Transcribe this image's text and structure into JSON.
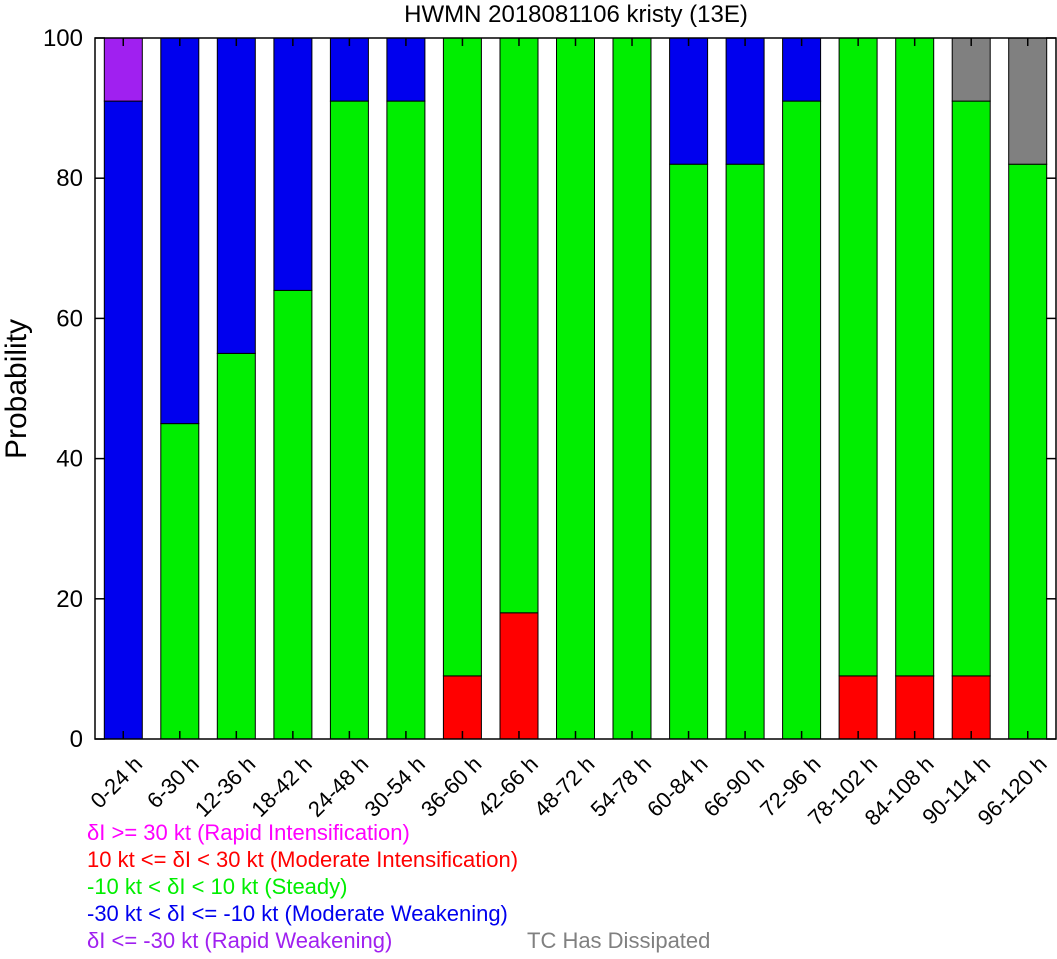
{
  "chart_data": {
    "type": "bar",
    "stacked": true,
    "title": "HWMN 2018081106 kristy (13E)",
    "ylabel": "Probability",
    "xlabel": "",
    "ylim": [
      0,
      100
    ],
    "yticks": [
      0,
      20,
      40,
      60,
      80,
      100
    ],
    "categories": [
      "0-24 h",
      "6-30 h",
      "12-36 h",
      "18-42 h",
      "24-48 h",
      "30-54 h",
      "36-60 h",
      "42-66 h",
      "48-72 h",
      "54-78 h",
      "60-84 h",
      "66-90 h",
      "72-96 h",
      "78-102 h",
      "84-108 h",
      "90-114 h",
      "96-120 h"
    ],
    "series": [
      {
        "name": "δI >= 30 kt (Rapid Intensification)",
        "color": "#ff00ff",
        "values": [
          0,
          0,
          0,
          0,
          0,
          0,
          0,
          0,
          0,
          0,
          0,
          0,
          0,
          0,
          0,
          0,
          0
        ]
      },
      {
        "name": "10 kt <= δI < 30 kt (Moderate Intensification)",
        "color": "#ff0000",
        "values": [
          0,
          0,
          0,
          0,
          0,
          0,
          9,
          18,
          0,
          0,
          0,
          0,
          0,
          9,
          9,
          9,
          0
        ]
      },
      {
        "name": "-10 kt < δI < 10 kt (Steady)",
        "color": "#00ee00",
        "values": [
          0,
          45,
          55,
          64,
          91,
          91,
          91,
          82,
          100,
          100,
          82,
          82,
          91,
          91,
          91,
          82,
          82
        ]
      },
      {
        "name": "-30 kt < δI <= -10 kt (Moderate Weakening)",
        "color": "#0000ee",
        "values": [
          91,
          55,
          45,
          36,
          9,
          9,
          0,
          0,
          0,
          0,
          18,
          18,
          9,
          0,
          0,
          0,
          0
        ]
      },
      {
        "name": "δI <= -30 kt (Rapid Weakening)",
        "color": "#a020f0",
        "values": [
          9,
          0,
          0,
          0,
          0,
          0,
          0,
          0,
          0,
          0,
          0,
          0,
          0,
          0,
          0,
          0,
          0
        ]
      },
      {
        "name": "TC Has Dissipated",
        "color": "#808080",
        "values": [
          0,
          0,
          0,
          0,
          0,
          0,
          0,
          0,
          0,
          0,
          0,
          0,
          0,
          0,
          0,
          9,
          18
        ]
      }
    ],
    "grid": false,
    "legend_placement": "bottom"
  },
  "legend": {
    "ri": {
      "label": "δI >= 30 kt (Rapid Intensification)",
      "color": "#ff00ff"
    },
    "mi": {
      "label": "10 kt <= δI < 30 kt (Moderate Intensification)",
      "color": "#ff0000"
    },
    "steady": {
      "label": "-10 kt < δI < 10 kt (Steady)",
      "color": "#00ee00"
    },
    "mw": {
      "label": "-30 kt < δI <= -10 kt (Moderate Weakening)",
      "color": "#0000ee"
    },
    "rw": {
      "label": "δI <= -30 kt (Rapid Weakening)",
      "color": "#a020f0"
    },
    "dissipated": {
      "label": "TC Has Dissipated",
      "color": "#808080"
    }
  }
}
